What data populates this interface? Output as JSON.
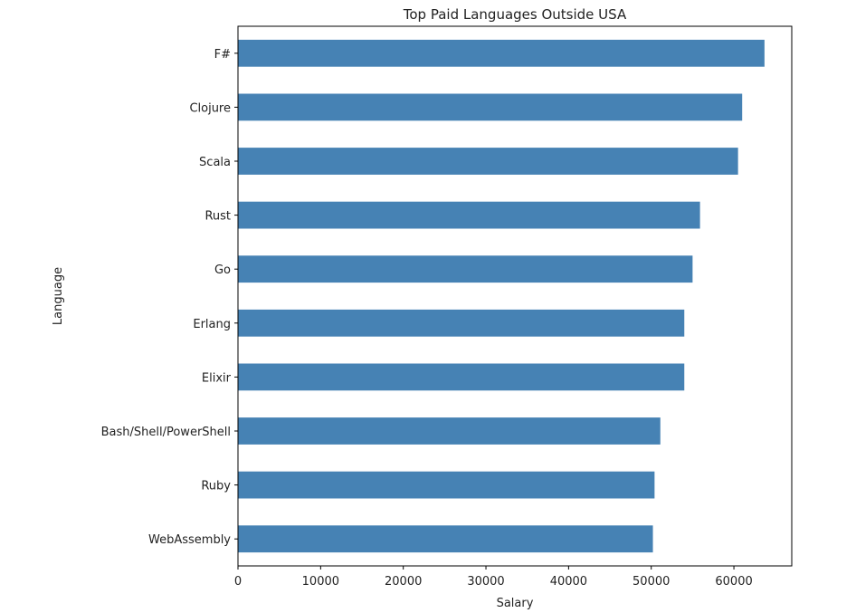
{
  "chart_data": {
    "type": "bar",
    "orientation": "horizontal",
    "title": "Top Paid Languages Outside USA",
    "xlabel": "Salary",
    "ylabel": "Language",
    "categories": [
      "F#",
      "Clojure",
      "Scala",
      "Rust",
      "Go",
      "Erlang",
      "Elixir",
      "Bash/Shell/PowerShell",
      "Ruby",
      "WebAssembly"
    ],
    "values": [
      63700,
      61000,
      60500,
      55900,
      55000,
      54000,
      54000,
      51100,
      50400,
      50200
    ],
    "xlim": [
      0,
      67000
    ],
    "xticks": [
      0,
      10000,
      20000,
      30000,
      40000,
      50000,
      60000
    ],
    "xtick_labels": [
      "0",
      "10000",
      "20000",
      "30000",
      "40000",
      "50000",
      "60000"
    ],
    "bar_color": "#4682b4",
    "grid": false,
    "legend": false
  }
}
